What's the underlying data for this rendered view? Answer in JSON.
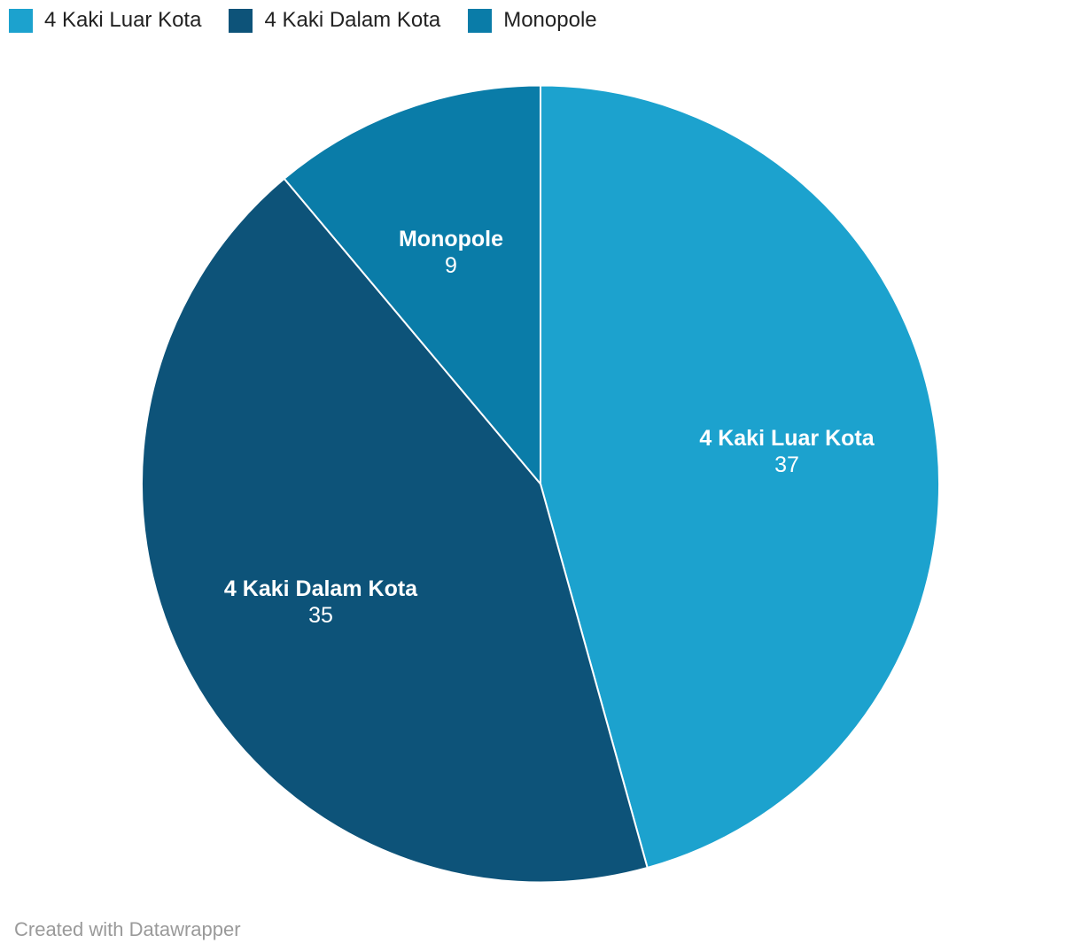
{
  "chart_data": {
    "type": "pie",
    "title": "",
    "series": [
      {
        "label": "4 Kaki Luar Kota",
        "value": 37,
        "color": "#1CA2CE"
      },
      {
        "label": "4 Kaki Dalam Kota",
        "value": 35,
        "color": "#0D5379"
      },
      {
        "label": "Monopole",
        "value": 9,
        "color": "#0A7CA8"
      }
    ],
    "total": 81,
    "start_angle_deg": 0,
    "direction": "clockwise",
    "slice_border_color": "#FFFFFF",
    "slice_border_width": 2,
    "legend_position": "top-left",
    "background_color": "#FFFFFF",
    "label_text_color": "#FFFFFF"
  },
  "footer": {
    "text": "Created with Datawrapper"
  }
}
